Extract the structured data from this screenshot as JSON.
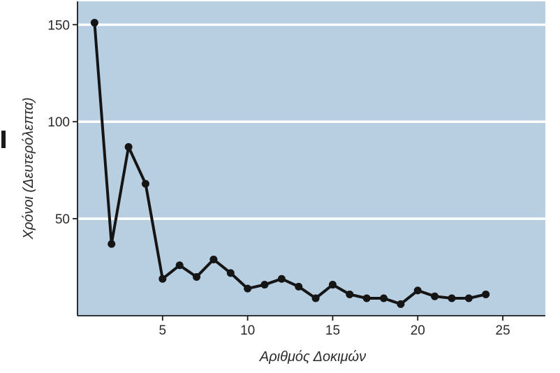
{
  "chart_data": {
    "type": "line",
    "title": "",
    "xlabel": "Αριθμός Δοκιμών",
    "ylabel": "Χρόνοι (Δευτερόλεπτα)",
    "xlim": [
      0,
      27.5
    ],
    "ylim": [
      0,
      162
    ],
    "x_ticks": [
      5,
      10,
      15,
      20,
      25
    ],
    "y_ticks": [
      50,
      100,
      150
    ],
    "grid": true,
    "colors": {
      "plot_background": "#b8cfe2",
      "grid_line": "#ffffff",
      "line": "#151515",
      "marker": "#151515"
    },
    "series": [
      {
        "x": [
          1,
          2,
          3,
          4,
          5,
          6,
          7,
          8,
          9,
          10,
          11,
          12,
          13,
          14,
          15,
          16,
          17,
          18,
          19,
          20,
          21,
          22,
          23,
          24
        ],
        "values": [
          151,
          37,
          87,
          68,
          19,
          26,
          20,
          29,
          22,
          14,
          16,
          19,
          15,
          9,
          16,
          11,
          9,
          9,
          6,
          13,
          10,
          9,
          9,
          11
        ]
      }
    ]
  }
}
